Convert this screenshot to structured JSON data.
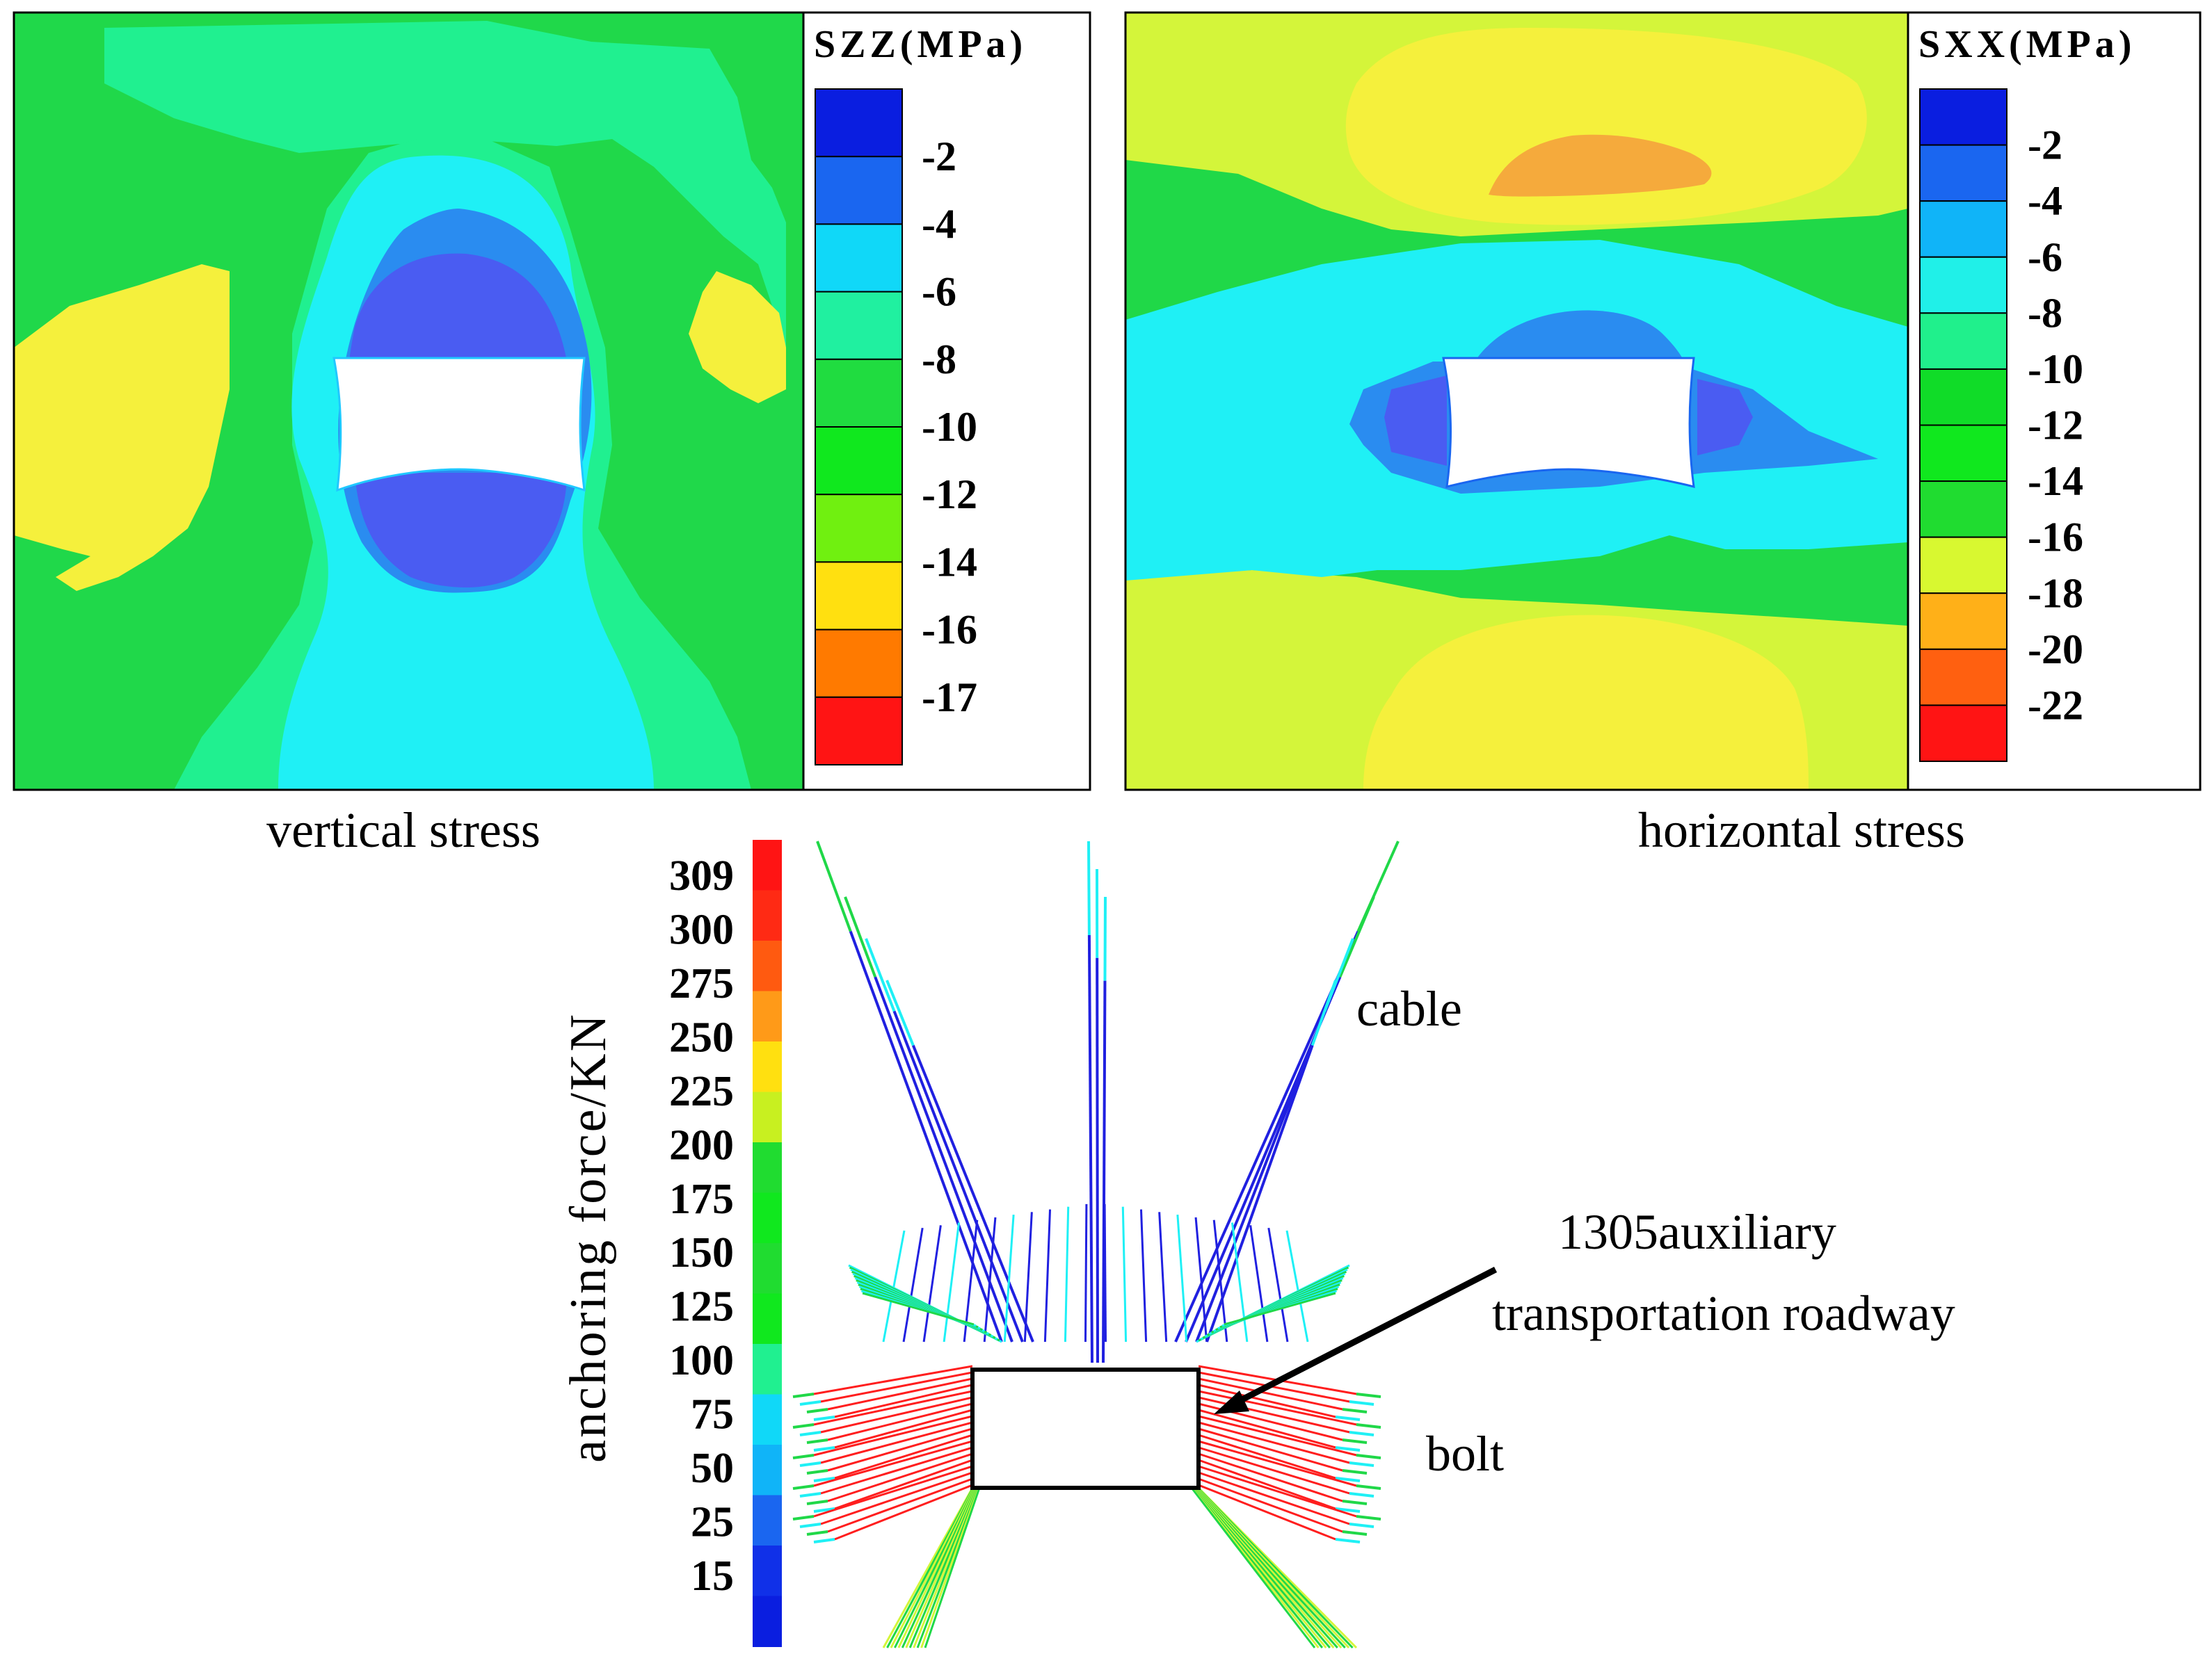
{
  "vertical_panel": {
    "colorbar_title": "SZZ(MPa)",
    "colorbar_labels": [
      "-2",
      "-4",
      "-6",
      "-8",
      "-10",
      "-12",
      "-14",
      "-16",
      "-17"
    ],
    "colorbar_colors": [
      "#0a1ee0",
      "#1a66f0",
      "#10d8f8",
      "#20f0a0",
      "#20dc40",
      "#10e81e",
      "#70f010",
      "#ffe010",
      "#ff7a00",
      "#ff1414"
    ],
    "caption": "vertical stress"
  },
  "horizontal_panel": {
    "colorbar_title": "SXX(MPa)",
    "colorbar_labels": [
      "-2",
      "-4",
      "-6",
      "-8",
      "-10",
      "-12",
      "-14",
      "-16",
      "-18",
      "-20",
      "-22"
    ],
    "colorbar_colors": [
      "#0a1ee0",
      "#1a66f0",
      "#10b4f8",
      "#20f0e8",
      "#20f08c",
      "#10dc28",
      "#10e81e",
      "#20dc30",
      "#d8f830",
      "#ffb018",
      "#ff6010",
      "#ff1414"
    ],
    "caption": "horizontal stress"
  },
  "anchoring_panel": {
    "axis_label": "anchoring force/KN",
    "legend_values": [
      "309",
      "300",
      "275",
      "250",
      "225",
      "200",
      "175",
      "150",
      "125",
      "100",
      "75",
      "50",
      "25",
      "15"
    ],
    "annotations": {
      "cable": "cable",
      "roadway_line1": "1305auxiliary",
      "roadway_line2": "transportation roadway",
      "bolt": "bolt"
    }
  },
  "colors": {
    "deep_blue": "#4a5cf2",
    "blue": "#2a8cf0",
    "cyan": "#1ff0f5",
    "aqua_green": "#20f090",
    "green": "#20d848",
    "yellow_green": "#d4f53a",
    "yellow": "#f5f03c",
    "orange": "#f5aa3c",
    "cable_blue": "#2020e0",
    "bolt_red": "#ff1e1e"
  }
}
